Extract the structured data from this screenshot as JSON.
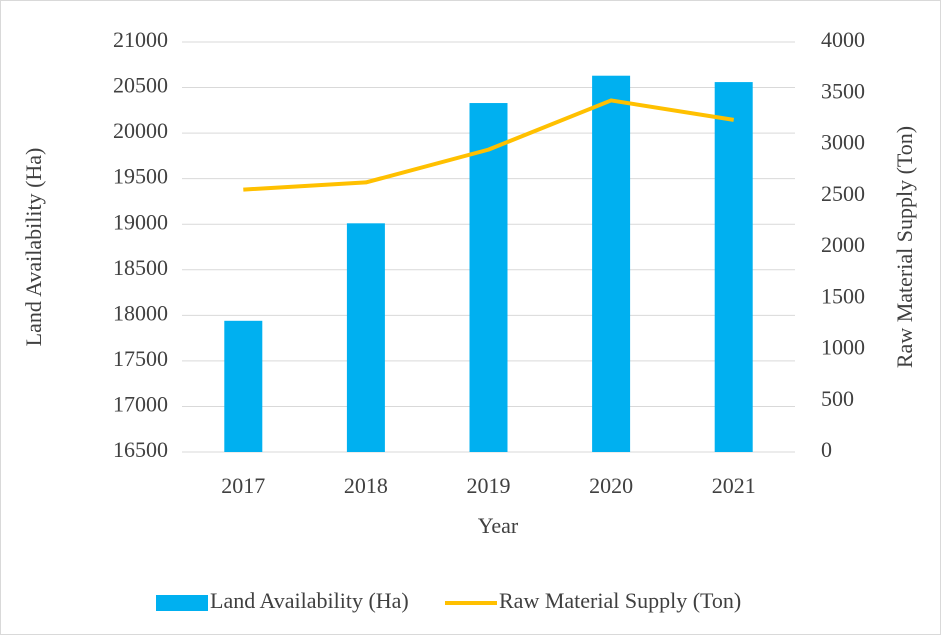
{
  "chart_data": {
    "type": "bar-line",
    "x_label": "Year",
    "y_label": "Land Availability (Ha)",
    "y2_label": "Raw Material Supply (Ton)",
    "categories": [
      "2017",
      "2018",
      "2019",
      "2020",
      "2021"
    ],
    "series": [
      {
        "name": "Land Availability (Ha)",
        "type": "bar",
        "color": "#00b0f0",
        "values": [
          17940,
          19010,
          20330,
          20630,
          20560
        ]
      },
      {
        "name": "Raw Material Supply (Ton)",
        "type": "line",
        "axis": "y2",
        "color": "#ffc000",
        "values": [
          2560,
          2630,
          2950,
          3430,
          3240
        ]
      }
    ],
    "ylim": [
      16500,
      21000
    ],
    "yticks": [
      16500,
      17000,
      17500,
      18000,
      18500,
      19000,
      19500,
      20000,
      20500,
      21000
    ],
    "y2lim": [
      0,
      4000
    ],
    "y2ticks": [
      0,
      500,
      1000,
      1500,
      2000,
      2500,
      3000,
      3500,
      4000
    ],
    "grid": true,
    "legend": "bottom"
  }
}
